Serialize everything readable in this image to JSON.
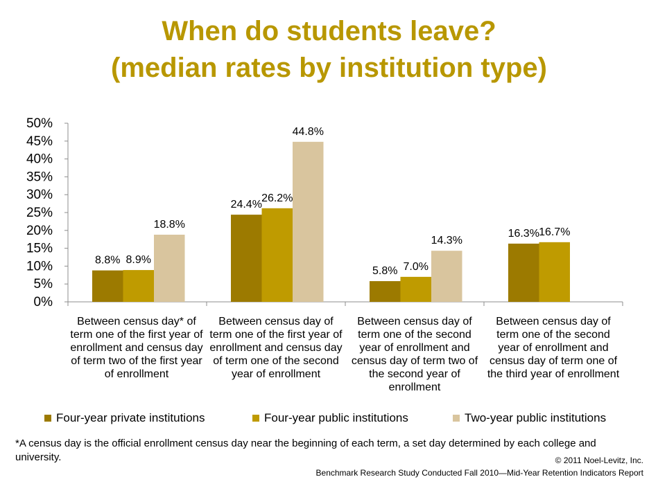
{
  "title_line1": "When do students leave?",
  "title_line2": "(median rates by institution type)",
  "chart_data": {
    "type": "bar",
    "categories": [
      "Between census day* of term one of the first year  of enrollment and census day of term two of the first year of enrollment",
      "Between census day of term one of the first year of enrollment and census day of term one of the second year of enrollment",
      "Between census day of term one of the second year of enrollment and census day of term two of the second year of enrollment",
      "Between census day of term one of the second year of enrollment and census day of term one of the third year of enrollment"
    ],
    "series": [
      {
        "name": "Four-year private institutions",
        "color": "#9c7a00",
        "values": [
          8.8,
          24.4,
          5.8,
          16.3
        ],
        "labels": [
          "8.8%",
          "24.4%",
          "5.8%",
          "16.3%"
        ]
      },
      {
        "name": "Four-year public institutions",
        "color": "#bf9b00",
        "values": [
          8.9,
          26.2,
          7.0,
          16.7
        ],
        "labels": [
          "8.9%",
          "26.2%",
          "7.0%",
          "16.7%"
        ]
      },
      {
        "name": "Two-year public institutions",
        "color": "#d9c59e",
        "values": [
          18.8,
          44.8,
          14.3,
          null
        ],
        "labels": [
          "18.8%",
          "44.8%",
          "14.3%",
          ""
        ]
      }
    ],
    "yticks": [
      "0%",
      "5%",
      "10%",
      "15%",
      "20%",
      "25%",
      "30%",
      "35%",
      "40%",
      "45%",
      "50%"
    ],
    "ylim": [
      0,
      50
    ],
    "unit": "%",
    "legend_position": "bottom"
  },
  "footnote": "*A census day is the official enrollment  census day near the beginning  of each term, a set day determined  by each college  and  university.",
  "copyright": "© 2011 Noel-Levitz,  Inc.",
  "source": "Benchmark Research Study Conducted Fall 2010—Mid-Year Retention Indicators Report"
}
